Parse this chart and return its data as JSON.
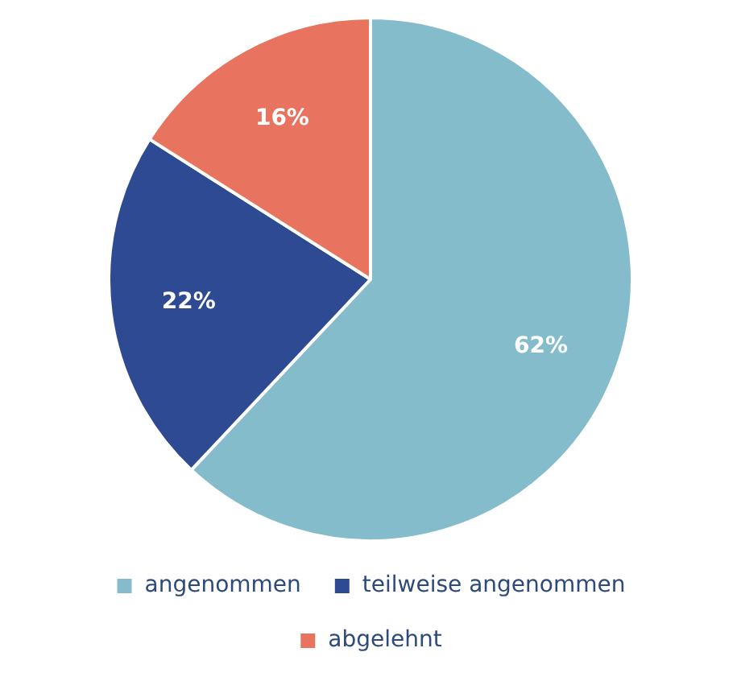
{
  "chart_data": {
    "type": "pie",
    "categories": [
      "angenommen",
      "teilweise angenommen",
      "abgelehnt"
    ],
    "values": [
      62,
      22,
      16
    ],
    "value_labels": [
      "62%",
      "22%",
      "16%"
    ],
    "colors": [
      "#84bccb",
      "#2e4a93",
      "#e8735e"
    ],
    "legend": "bottom"
  }
}
